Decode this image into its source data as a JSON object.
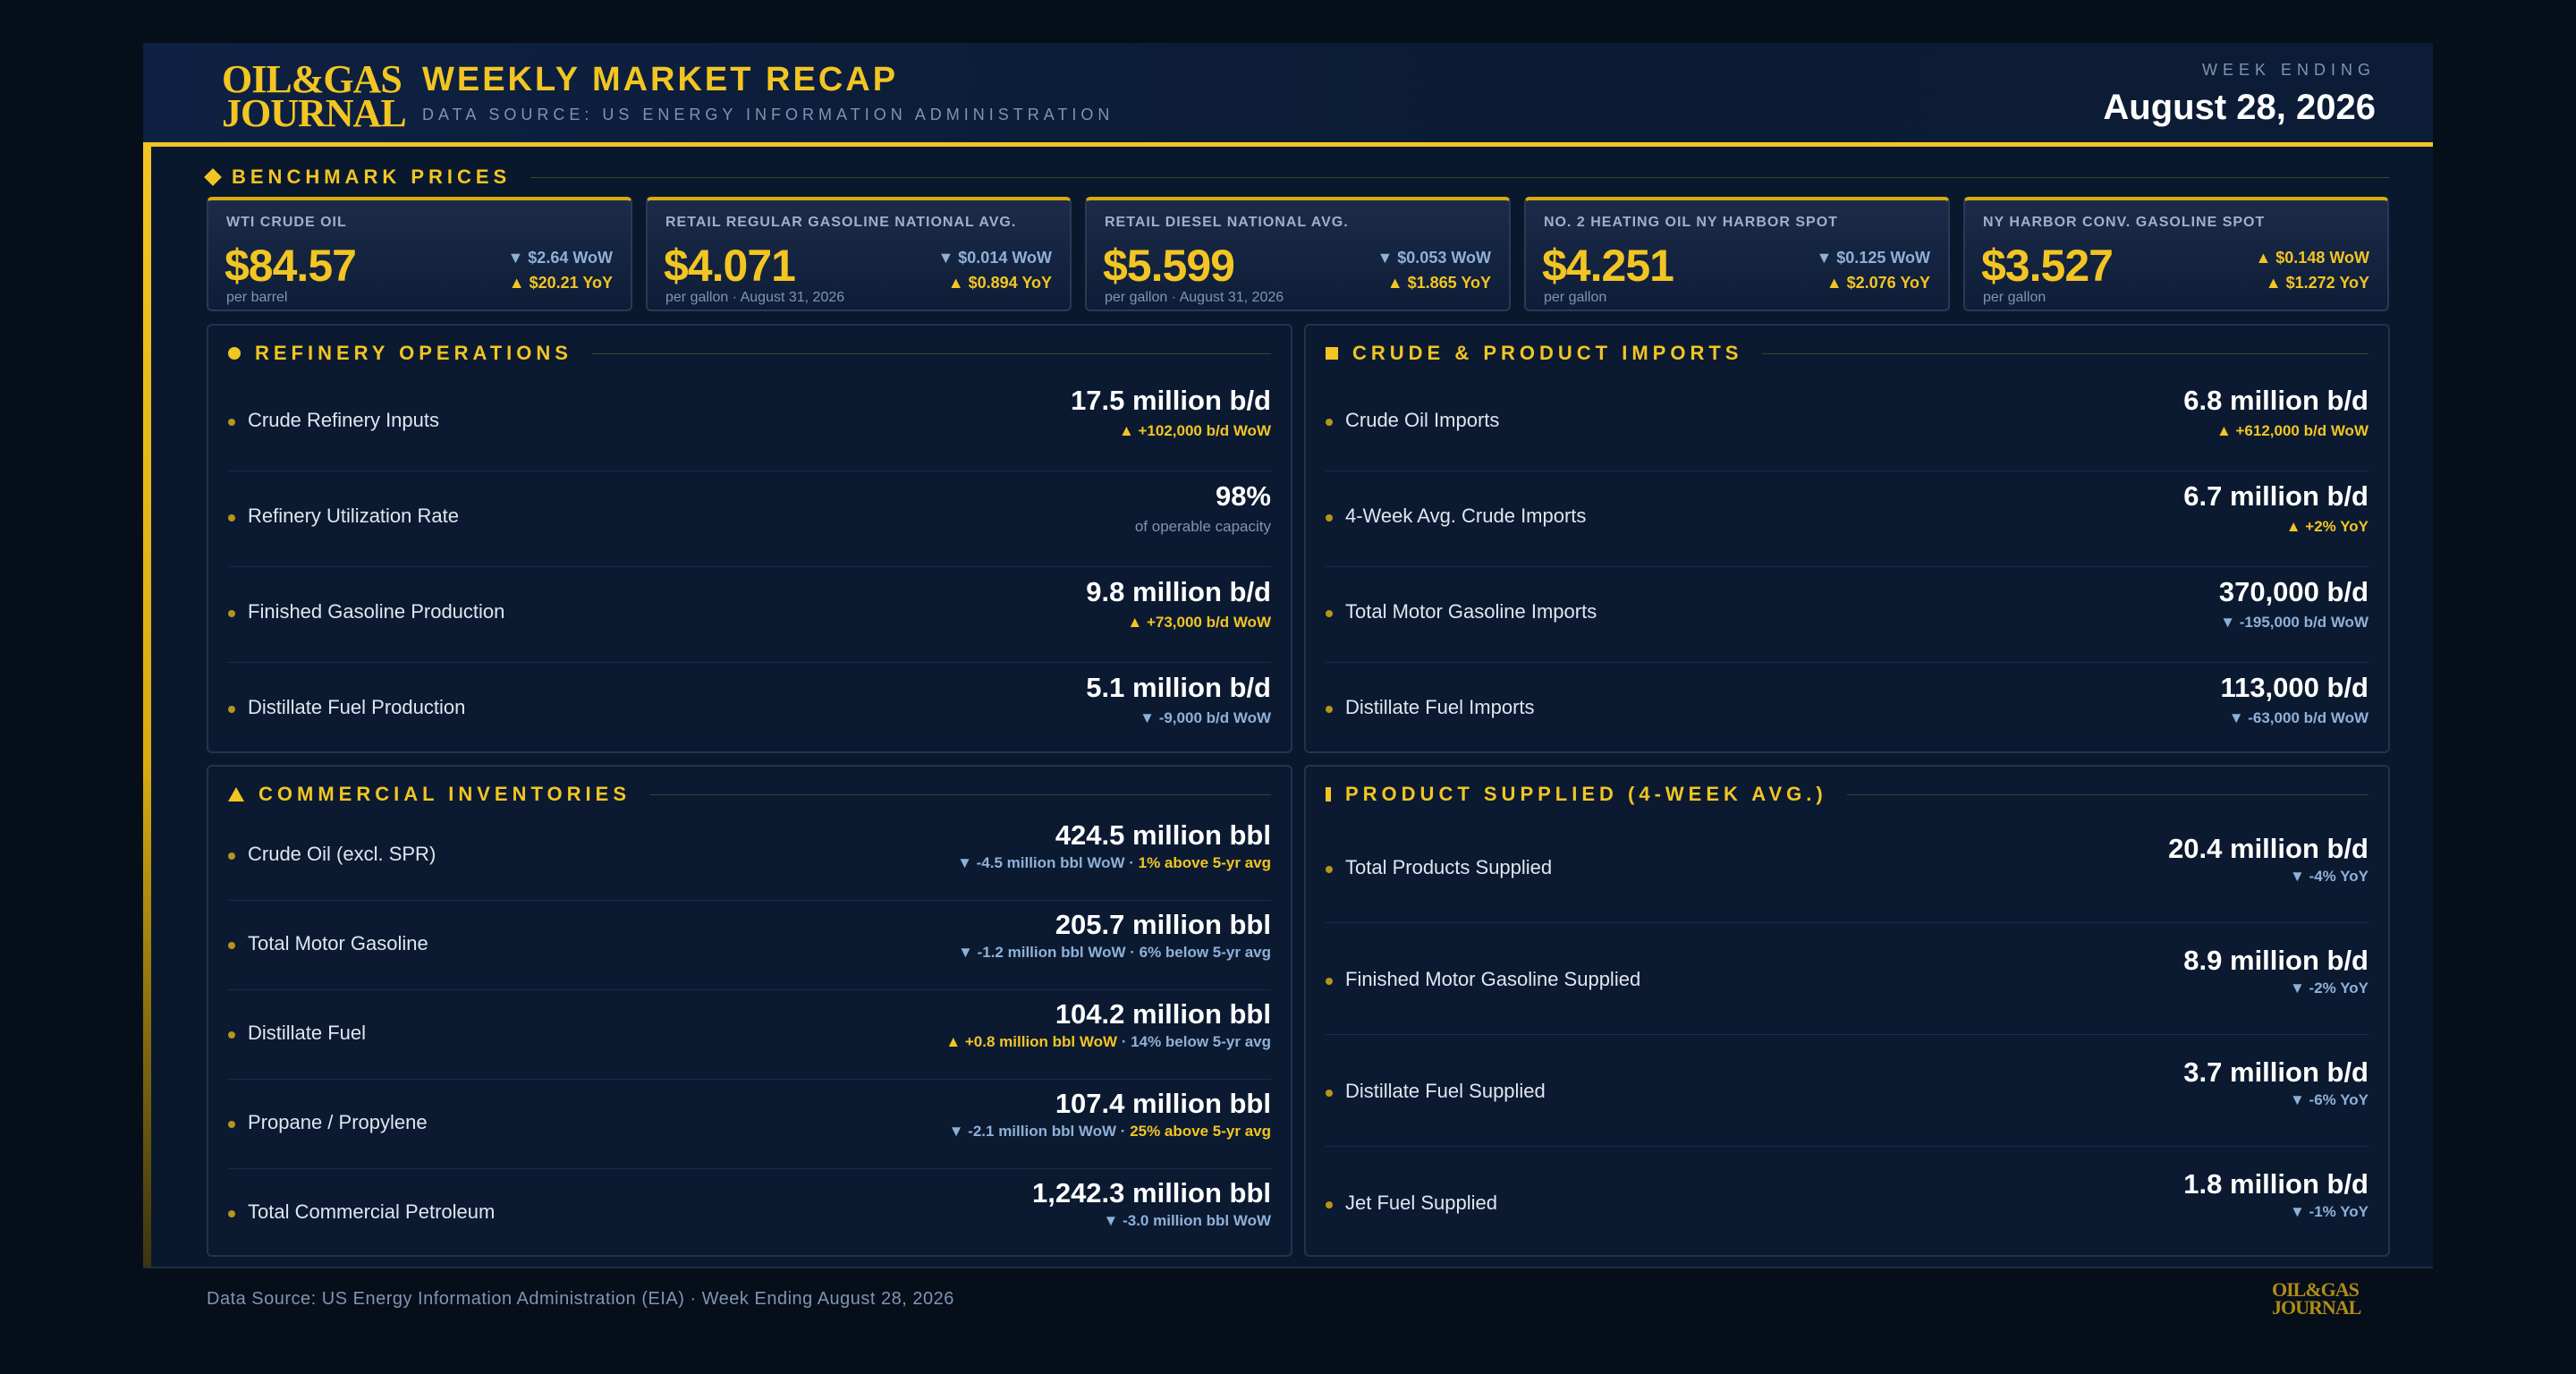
{
  "header": {
    "logo_line1": "OIL&GAS",
    "logo_line2": "JOURNAL",
    "title": "WEEKLY MARKET RECAP",
    "subtitle": "DATA SOURCE: US ENERGY INFORMATION ADMINISTRATION",
    "week_label": "WEEK ENDING",
    "week_date": "August 28, 2026"
  },
  "benchmark": {
    "heading": "BENCHMARK PRICES",
    "cards": [
      {
        "name": "WTI CRUDE OIL",
        "price": "$84.57",
        "unit": "per barrel",
        "wow": "▼ $2.64 WoW",
        "wow_dir": "down",
        "yoy": "▲ $20.21 YoY",
        "yoy_dir": "up"
      },
      {
        "name": "RETAIL REGULAR GASOLINE NATIONAL AVG.",
        "price": "$4.071",
        "unit": "per gallon · August 31, 2026",
        "wow": "▼ $0.014 WoW",
        "wow_dir": "down",
        "yoy": "▲ $0.894 YoY",
        "yoy_dir": "up"
      },
      {
        "name": "RETAIL DIESEL NATIONAL AVG.",
        "price": "$5.599",
        "unit": "per gallon · August 31, 2026",
        "wow": "▼ $0.053 WoW",
        "wow_dir": "down",
        "yoy": "▲ $1.865 YoY",
        "yoy_dir": "up"
      },
      {
        "name": "NO. 2 HEATING OIL NY HARBOR SPOT",
        "price": "$4.251",
        "unit": "per gallon",
        "wow": "▼ $0.125 WoW",
        "wow_dir": "down",
        "yoy": "▲ $2.076 YoY",
        "yoy_dir": "up"
      },
      {
        "name": "NY HARBOR CONV. GASOLINE SPOT",
        "price": "$3.527",
        "unit": "per gallon",
        "wow": "▲ $0.148 WoW",
        "wow_dir": "up",
        "yoy": "▲ $1.272 YoY",
        "yoy_dir": "up"
      }
    ]
  },
  "refinery": {
    "heading": "REFINERY OPERATIONS",
    "rows": [
      {
        "name": "Crude Refinery Inputs",
        "value": "17.5 million b/d",
        "change": "▲ +102,000 b/d WoW",
        "dir": "up"
      },
      {
        "name": "Refinery Utilization Rate",
        "value": "98%",
        "change": "of operable capacity",
        "dir": "note"
      },
      {
        "name": "Finished Gasoline Production",
        "value": "9.8 million b/d",
        "change": "▲ +73,000 b/d WoW",
        "dir": "up"
      },
      {
        "name": "Distillate Fuel Production",
        "value": "5.1 million b/d",
        "change": "▼ -9,000 b/d WoW",
        "dir": "down"
      }
    ]
  },
  "imports": {
    "heading": "CRUDE & PRODUCT IMPORTS",
    "rows": [
      {
        "name": "Crude Oil Imports",
        "value": "6.8 million b/d",
        "change": "▲ +612,000 b/d WoW",
        "dir": "up"
      },
      {
        "name": "4-Week Avg. Crude Imports",
        "value": "6.7 million b/d",
        "change": "▲ +2% YoY",
        "dir": "up"
      },
      {
        "name": "Total Motor Gasoline Imports",
        "value": "370,000 b/d",
        "change": "▼ -195,000 b/d WoW",
        "dir": "down"
      },
      {
        "name": "Distillate Fuel Imports",
        "value": "113,000 b/d",
        "change": "▼ -63,000 b/d WoW",
        "dir": "down"
      }
    ]
  },
  "inventories": {
    "heading": "COMMERCIAL INVENTORIES",
    "rows": [
      {
        "name": "Crude Oil (excl. SPR)",
        "value": "424.5 million bbl",
        "change": "▼ -4.5 million bbl WoW",
        "dir": "down",
        "avg": "1% above 5-yr avg",
        "avg_dir": "up"
      },
      {
        "name": "Total Motor Gasoline",
        "value": "205.7 million bbl",
        "change": "▼ -1.2 million bbl WoW",
        "dir": "down",
        "avg": "6% below 5-yr avg",
        "avg_dir": "down"
      },
      {
        "name": "Distillate Fuel",
        "value": "104.2 million bbl",
        "change": "▲ +0.8 million bbl WoW",
        "dir": "up",
        "avg": "14% below 5-yr avg",
        "avg_dir": "down"
      },
      {
        "name": "Propane / Propylene",
        "value": "107.4 million bbl",
        "change": "▼ -2.1 million bbl WoW",
        "dir": "down",
        "avg": "25% above 5-yr avg",
        "avg_dir": "up"
      },
      {
        "name": "Total Commercial Petroleum",
        "value": "1,242.3 million bbl",
        "change": "▼ -3.0 million bbl WoW",
        "dir": "down",
        "avg": "",
        "avg_dir": "down"
      }
    ]
  },
  "supplied": {
    "heading": "PRODUCT SUPPLIED (4-WEEK AVG.)",
    "rows": [
      {
        "name": "Total Products Supplied",
        "value": "20.4 million b/d",
        "change": "▼ -4% YoY",
        "dir": "down"
      },
      {
        "name": "Finished Motor Gasoline Supplied",
        "value": "8.9 million b/d",
        "change": "▼ -2% YoY",
        "dir": "down"
      },
      {
        "name": "Distillate Fuel Supplied",
        "value": "3.7 million b/d",
        "change": "▼ -6% YoY",
        "dir": "down"
      },
      {
        "name": "Jet Fuel Supplied",
        "value": "1.8 million b/d",
        "change": "▼ -1% YoY",
        "dir": "down"
      }
    ]
  },
  "footer": {
    "text": "Data Source: US Energy Information Administration (EIA)  ·  Week Ending August 28, 2026",
    "logo_line1": "OIL&GAS",
    "logo_line2": "JOURNAL"
  },
  "colors": {
    "accent": "#f2c523",
    "down": "#8fb0d8",
    "background": "#0a182d"
  }
}
